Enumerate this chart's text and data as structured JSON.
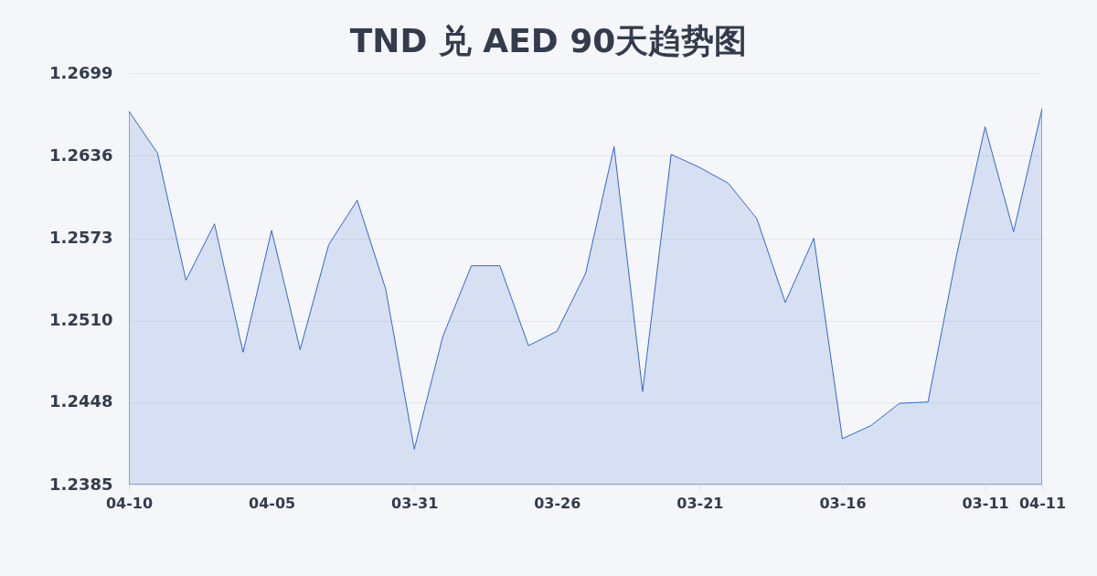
{
  "chart_data": {
    "type": "area",
    "title": "TND 兑 AED 90天趋势图",
    "categories": [
      "04-10",
      null,
      null,
      null,
      null,
      "04-05",
      null,
      null,
      null,
      null,
      "03-31",
      null,
      null,
      null,
      null,
      "03-26",
      null,
      null,
      null,
      null,
      "03-21",
      null,
      null,
      null,
      null,
      "03-16",
      null,
      null,
      null,
      null,
      "03-11",
      null,
      "04-11"
    ],
    "series": [
      {
        "color": "#3366cc",
        "values": [
          1.267,
          1.2638,
          1.2541,
          1.2584,
          1.2486,
          1.2579,
          1.2488,
          1.2568,
          1.2602,
          1.2534,
          1.2412,
          1.2498,
          1.2552,
          1.2552,
          1.2491,
          1.2502,
          1.2546,
          1.2643,
          1.2456,
          1.2637,
          1.2627,
          1.2615,
          1.2588,
          1.2524,
          1.2573,
          1.242,
          1.243,
          1.2447,
          1.2448,
          1.256,
          1.2658,
          1.2578,
          1.2672
        ]
      }
    ],
    "ylim": [
      1.2385,
      1.2699
    ],
    "yticks": [
      1.2385,
      1.2448,
      {
        "value": 1.251,
        "label": "1.2510"
      },
      1.2573,
      1.2636,
      1.2699
    ],
    "grid": "y"
  }
}
